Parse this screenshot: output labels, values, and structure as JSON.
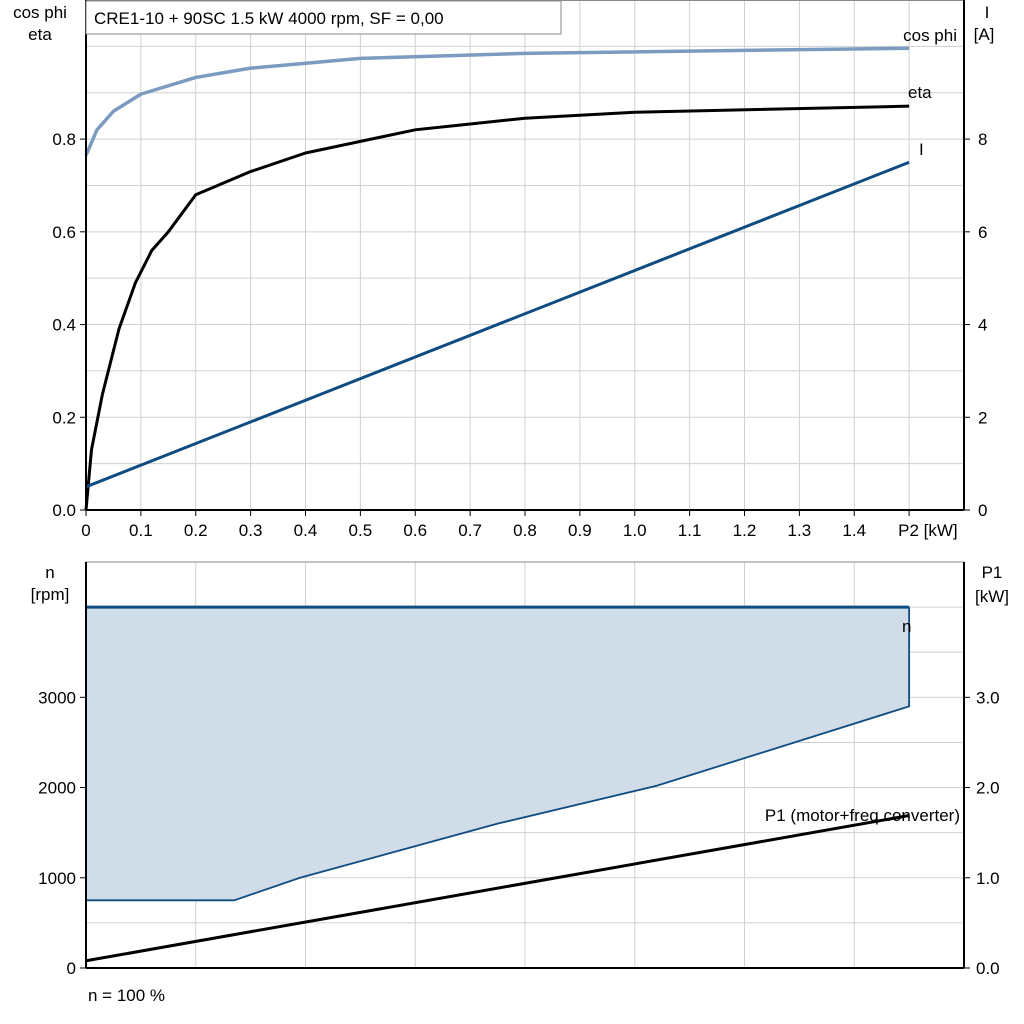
{
  "chart_data": [
    {
      "type": "line",
      "title": "CRE1-10 + 90SC   1.5 kW   4000 rpm, SF = 0,00",
      "xlabel": "P2 [kW]",
      "ylabel_left": [
        "cos phi",
        "eta"
      ],
      "ylabel_right": [
        "I",
        "[A]"
      ],
      "xlim": [
        0,
        1.6
      ],
      "ylim_left": [
        0,
        1.1
      ],
      "ylim_right": [
        0,
        11
      ],
      "grid": true,
      "x_ticks": [
        "0",
        "0.1",
        "0.2",
        "0.3",
        "0.4",
        "0.5",
        "0.6",
        "0.7",
        "0.8",
        "0.9",
        "1.0",
        "1.1",
        "1.2",
        "1.3",
        "1.4"
      ],
      "y_ticks_left": [
        "0.0",
        "0.2",
        "0.4",
        "0.6",
        "0.8"
      ],
      "y_ticks_right": [
        "0",
        "2",
        "4",
        "6",
        "8"
      ],
      "series": [
        {
          "name": "cos phi",
          "axis": "left",
          "color": "#7b9cc0",
          "x": [
            0,
            0.02,
            0.05,
            0.1,
            0.2,
            0.3,
            0.5,
            0.8,
            1.5
          ],
          "y": [
            0.765,
            0.82,
            0.86,
            0.897,
            0.933,
            0.953,
            0.974,
            0.985,
            0.996
          ]
        },
        {
          "name": "eta",
          "axis": "left",
          "color": "#000000",
          "x": [
            0,
            0.01,
            0.03,
            0.06,
            0.09,
            0.12,
            0.15,
            0.2,
            0.3,
            0.4,
            0.6,
            0.8,
            1.0,
            1.5
          ],
          "y": [
            0,
            0.13,
            0.25,
            0.39,
            0.49,
            0.56,
            0.6,
            0.68,
            0.73,
            0.77,
            0.82,
            0.845,
            0.858,
            0.871
          ]
        },
        {
          "name": "I",
          "axis": "right",
          "color": "#0f4c81",
          "x": [
            0,
            1.5
          ],
          "y": [
            0.5,
            7.5
          ]
        }
      ]
    },
    {
      "type": "area",
      "xlim": [
        0,
        1.6
      ],
      "ylabel_left": [
        "n",
        "[rpm]"
      ],
      "ylabel_right": [
        "P1",
        "[kW]"
      ],
      "ylim_left": [
        0,
        4500
      ],
      "ylim_right": [
        0,
        4.5
      ],
      "grid": true,
      "y_ticks_left": [
        "0",
        "1000",
        "2000",
        "3000"
      ],
      "y_ticks_right": [
        "0.0",
        "1.0",
        "2.0",
        "3.0"
      ],
      "footer": "n = 100 %",
      "series": [
        {
          "name": "n",
          "axis": "left",
          "color": "#0f4c81",
          "fill": "#d0dce8",
          "upper": {
            "x": [
              0,
              1.5
            ],
            "y": [
              4000,
              4000
            ]
          },
          "lower": {
            "x": [
              0,
              0.27,
              0.39,
              0.75,
              1.04,
              1.5
            ],
            "y": [
              750,
              750,
              1000,
              1600,
              2020,
              2900
            ]
          }
        },
        {
          "name": "P1 (motor+freq.converter)",
          "axis": "right",
          "color": "#000000",
          "x": [
            0,
            1.5
          ],
          "y": [
            0.08,
            1.69
          ]
        }
      ]
    }
  ]
}
